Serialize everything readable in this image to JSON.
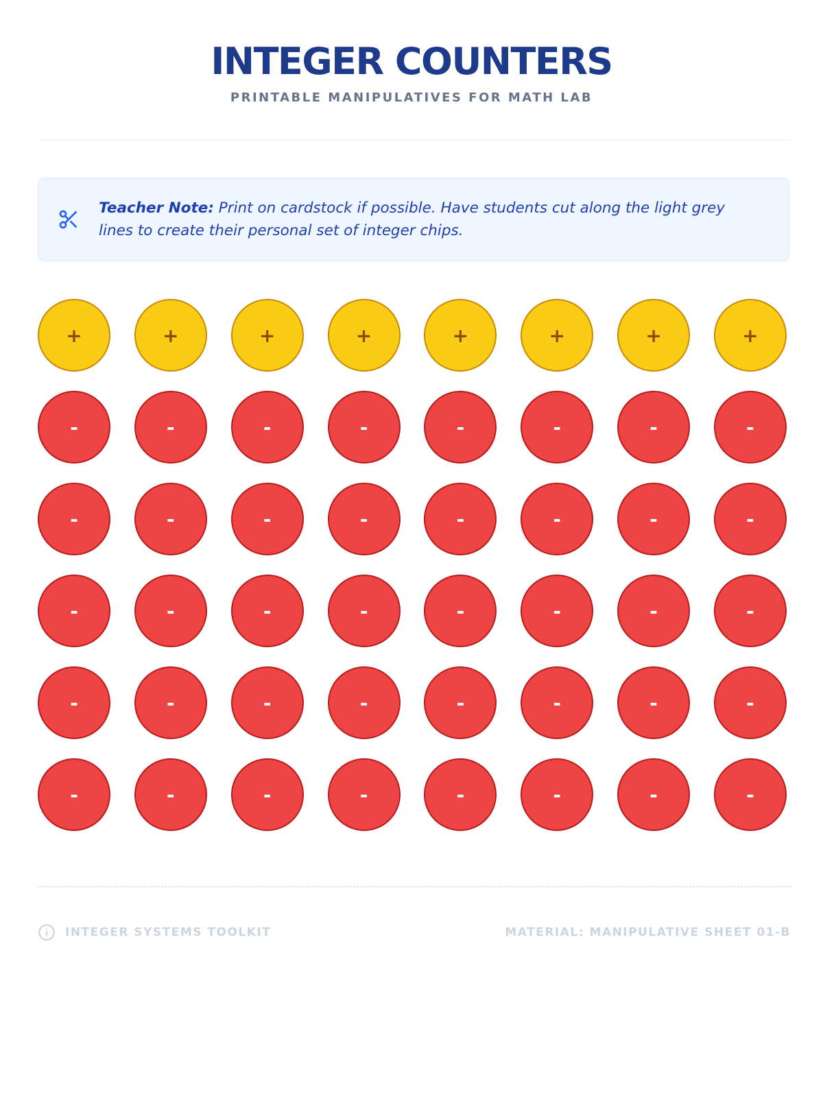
{
  "header": {
    "title": "INTEGER COUNTERS",
    "subtitle": "PRINTABLE MANIPULATIVES FOR MATH LAB"
  },
  "note": {
    "label": "Teacher Note:",
    "text": "Print on cardstock if possible. Have students cut along the light grey lines to create their personal set of integer chips."
  },
  "chips": {
    "rows": [
      [
        "+",
        "+",
        "+",
        "+",
        "+",
        "+",
        "+",
        "+"
      ],
      [
        "-",
        "-",
        "-",
        "-",
        "-",
        "-",
        "-",
        "-"
      ],
      [
        "-",
        "-",
        "-",
        "-",
        "-",
        "-",
        "-",
        "-"
      ],
      [
        "-",
        "-",
        "-",
        "-",
        "-",
        "-",
        "-",
        "-"
      ],
      [
        "-",
        "-",
        "-",
        "-",
        "-",
        "-",
        "-",
        "-"
      ],
      [
        "-",
        "-",
        "-",
        "-",
        "-",
        "-",
        "-",
        "-"
      ]
    ]
  },
  "footer": {
    "left": "INTEGER SYSTEMS TOOLKIT",
    "right": "MATERIAL: MANIPULATIVE SHEET 01-B"
  }
}
